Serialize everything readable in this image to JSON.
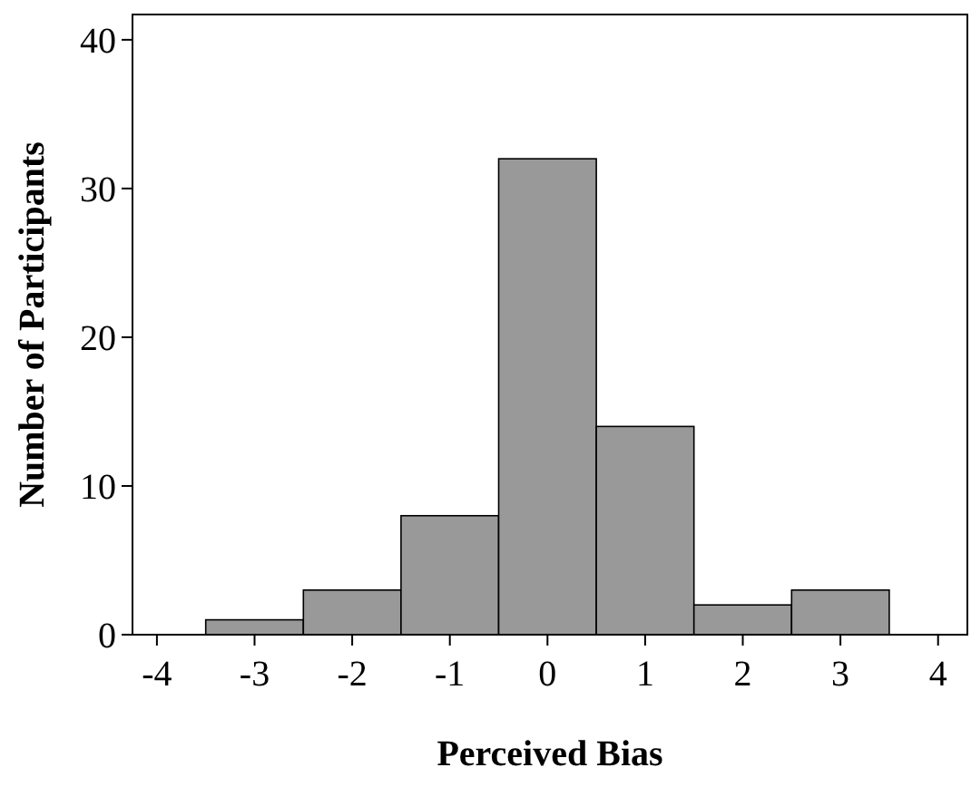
{
  "chart_data": {
    "type": "histogram",
    "xlabel": "Perceived Bias",
    "ylabel": "Number of Participants",
    "bins": [
      -3.5,
      -2.5,
      -1.5,
      -0.5,
      0.5,
      1.5,
      2.5,
      3.5
    ],
    "values": [
      1,
      3,
      8,
      32,
      14,
      2,
      3
    ],
    "color": "#999999",
    "xlim": [
      -4.25,
      4.3
    ],
    "ylim": [
      0,
      41.7
    ],
    "xticks": [
      -4,
      -3,
      -2,
      -1,
      0,
      1,
      2,
      3,
      4
    ],
    "yticks": [
      0,
      10,
      20,
      30,
      40
    ],
    "grid": false
  }
}
